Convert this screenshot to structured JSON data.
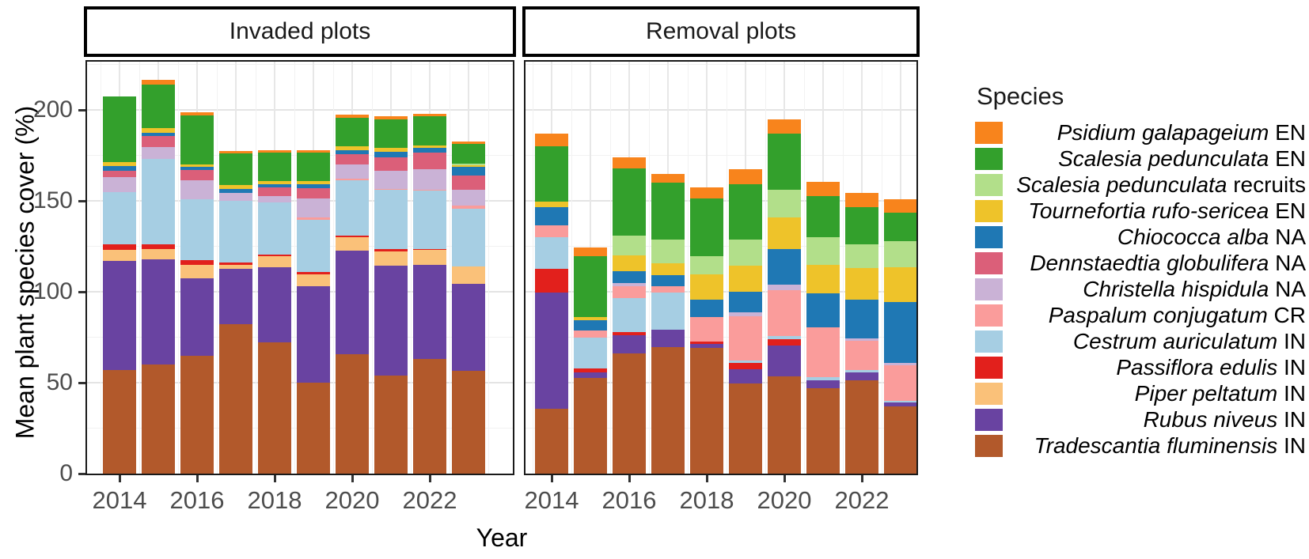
{
  "figure": {
    "y_axis": {
      "title": "Mean plant species cover (%)",
      "tick_labels": [
        "0",
        "50",
        "100",
        "150",
        "200"
      ]
    },
    "x_axis": {
      "title": "Year",
      "tick_labels": [
        "2014",
        "2016",
        "2018",
        "2020",
        "2022"
      ]
    }
  },
  "legend": {
    "title": "Species",
    "items": [
      {
        "name": "Psidium galapageium",
        "suffix": "EN",
        "color": "#F8841C"
      },
      {
        "name": "Scalesia pedunculata",
        "suffix": "EN",
        "color": "#33A02C"
      },
      {
        "name": "Scalesia pedunculata",
        "suffix": "recruits",
        "color": "#B2DF8A"
      },
      {
        "name": "Tournefortia rufo-sericea",
        "suffix": "EN",
        "color": "#EEC32A"
      },
      {
        "name": "Chiococca alba",
        "suffix": "NA",
        "color": "#1F78B4"
      },
      {
        "name": "Dennstaedtia globulifera",
        "suffix": "NA",
        "color": "#DB5F79"
      },
      {
        "name": "Christella hispidula",
        "suffix": "NA",
        "color": "#CAB2D6"
      },
      {
        "name": "Paspalum conjugatum",
        "suffix": "CR",
        "color": "#FA9C9B"
      },
      {
        "name": "Cestrum auriculatum",
        "suffix": "IN",
        "color": "#A6CEE3"
      },
      {
        "name": "Passiflora edulis",
        "suffix": "IN",
        "color": "#E2201C"
      },
      {
        "name": "Piper peltatum",
        "suffix": "IN",
        "color": "#FAC179"
      },
      {
        "name": "Rubus niveus",
        "suffix": "IN",
        "color": "#6943A1"
      },
      {
        "name": "Tradescantia fluminensis",
        "suffix": "IN",
        "color": "#B2592B"
      }
    ]
  },
  "chart_data": {
    "type": "bar",
    "stacked": true,
    "title": "",
    "xlabel": "Year",
    "ylabel": "Mean plant species cover (%)",
    "ylim": [
      0,
      231
    ],
    "y_major_gridlines": [
      50,
      100,
      150,
      200
    ],
    "y_minor_gridlines": [
      25,
      75,
      125,
      175,
      225
    ],
    "y_ticks": [
      0,
      50,
      100,
      150,
      200
    ],
    "x": [
      2014,
      2015,
      2016,
      2017,
      2018,
      2019,
      2020,
      2021,
      2022,
      2023
    ],
    "x_tick_indices": [
      0,
      2,
      4,
      6,
      8
    ],
    "x_tick_labels": [
      "2014",
      "2016",
      "2018",
      "2020",
      "2022"
    ],
    "legend_position": "right",
    "facets": [
      {
        "label": "Invaded plots",
        "series": [
          {
            "name": "Tradescantia fluminensis",
            "status": "IN",
            "color": "#B2592B",
            "values": [
              57,
              60,
              65,
              82,
              72,
              50,
              65.5,
              54,
              63,
              56.5
            ]
          },
          {
            "name": "Rubus niveus",
            "status": "IN",
            "color": "#6943A1",
            "values": [
              60,
              58,
              42.5,
              30.5,
              41.5,
              53,
              57,
              60.5,
              52,
              48
            ]
          },
          {
            "name": "Piper peltatum",
            "status": "IN",
            "color": "#FAC179",
            "values": [
              6,
              5.5,
              7.5,
              2.5,
              6,
              6.5,
              7.5,
              7.5,
              8,
              9.5
            ]
          },
          {
            "name": "Passiflora edulis",
            "status": "IN",
            "color": "#E2201C",
            "values": [
              3,
              2.5,
              2.5,
              1,
              1,
              1.5,
              1,
              1.5,
              0.5,
              0
            ]
          },
          {
            "name": "Cestrum auriculatum",
            "status": "IN",
            "color": "#A6CEE3",
            "values": [
              29,
              47,
              33.5,
              34,
              28.5,
              28.5,
              30.5,
              32.5,
              32,
              31.5
            ]
          },
          {
            "name": "Paspalum conjugatum",
            "status": "CR",
            "color": "#FA9C9B",
            "values": [
              0,
              0,
              0,
              0,
              0,
              1.5,
              0.5,
              0.5,
              0.5,
              2
            ]
          },
          {
            "name": "Christella hispidula",
            "status": "NA",
            "color": "#CAB2D6",
            "values": [
              8,
              6.5,
              10.5,
              4.5,
              3.5,
              10.5,
              8,
              10,
              11.5,
              8.5
            ]
          },
          {
            "name": "Dennstaedtia globulifera",
            "status": "NA",
            "color": "#DB5F79",
            "values": [
              3.5,
              6,
              5.5,
              0,
              5,
              5.5,
              5.5,
              7.5,
              9,
              8
            ]
          },
          {
            "name": "Chiococca alba",
            "status": "NA",
            "color": "#1F78B4",
            "values": [
              2.5,
              2,
              1.5,
              2,
              1.5,
              2,
              2.5,
              3,
              2.5,
              4.5
            ]
          },
          {
            "name": "Tournefortia rufo-sericea",
            "status": "EN",
            "color": "#EEC32A",
            "values": [
              2.5,
              2.5,
              1.5,
              2,
              2,
              2,
              2,
              2,
              1.5,
              1
            ]
          },
          {
            "name": "Scalesia pedunculata recruits",
            "status": "",
            "color": "#B2DF8A",
            "values": [
              0,
              0,
              0,
              0,
              0,
              0,
              0,
              0,
              0,
              1
            ]
          },
          {
            "name": "Scalesia pedunculata",
            "status": "EN",
            "color": "#33A02C",
            "values": [
              36,
              24,
              27,
              17.5,
              15.5,
              15.5,
              15.5,
              16,
              16,
              11
            ]
          },
          {
            "name": "Psidium galapageium",
            "status": "EN",
            "color": "#F8841C",
            "values": [
              0,
              2.5,
              1.5,
              1.5,
              1.5,
              1.5,
              2,
              1.5,
              1.5,
              1
            ]
          }
        ]
      },
      {
        "label": "Removal plots",
        "series": [
          {
            "name": "Tradescantia fluminensis",
            "status": "IN",
            "color": "#B2592B",
            "values": [
              35.5,
              52.5,
              66,
              69.5,
              69,
              49.5,
              53.5,
              47,
              51.5,
              37
            ]
          },
          {
            "name": "Rubus niveus",
            "status": "IN",
            "color": "#6943A1",
            "values": [
              64,
              3,
              10,
              9.5,
              2.5,
              8,
              17,
              4.5,
              4,
              2
            ]
          },
          {
            "name": "Piper peltatum",
            "status": "IN",
            "color": "#FAC179",
            "values": [
              0,
              0,
              0,
              0,
              0,
              0,
              0,
              0,
              0,
              0
            ]
          },
          {
            "name": "Passiflora edulis",
            "status": "IN",
            "color": "#E2201C",
            "values": [
              13,
              2.5,
              2,
              0,
              1,
              3.5,
              3.5,
              0,
              0,
              0
            ]
          },
          {
            "name": "Cestrum auriculatum",
            "status": "IN",
            "color": "#A6CEE3",
            "values": [
              17.5,
              17,
              18.5,
              20.5,
              0,
              1,
              1.5,
              1.5,
              1.5,
              1
            ]
          },
          {
            "name": "Paspalum conjugatum",
            "status": "CR",
            "color": "#FA9C9B",
            "values": [
              6.5,
              3.5,
              6.5,
              3.5,
              13.5,
              24.5,
              25.5,
              27.5,
              16,
              19.5
            ]
          },
          {
            "name": "Christella hispidula",
            "status": "NA",
            "color": "#CAB2D6",
            "values": [
              0,
              0,
              2,
              0,
              0,
              2,
              3,
              0,
              1.5,
              1.5
            ]
          },
          {
            "name": "Dennstaedtia globulifera",
            "status": "NA",
            "color": "#DB5F79",
            "values": [
              0,
              0,
              0,
              0,
              0,
              0,
              0,
              0,
              0,
              0
            ]
          },
          {
            "name": "Chiococca alba",
            "status": "NA",
            "color": "#1F78B4",
            "values": [
              10,
              6,
              6.5,
              6,
              9.5,
              11.5,
              19.5,
              18.5,
              21,
              33.5
            ]
          },
          {
            "name": "Tournefortia rufo-sericea",
            "status": "EN",
            "color": "#EEC32A",
            "values": [
              3,
              1.5,
              8.5,
              6.5,
              14,
              14.5,
              17.5,
              16,
              17.5,
              19
            ]
          },
          {
            "name": "Scalesia pedunculata recruits",
            "status": "",
            "color": "#B2DF8A",
            "values": [
              0,
              0,
              11,
              13,
              10,
              14,
              15,
              15,
              13,
              14.5
            ]
          },
          {
            "name": "Scalesia pedunculata",
            "status": "EN",
            "color": "#33A02C",
            "values": [
              30.5,
              33.5,
              37,
              31.5,
              32,
              30.5,
              31,
              22.5,
              20.5,
              15.5
            ]
          },
          {
            "name": "Psidium galapageium",
            "status": "EN",
            "color": "#F8841C",
            "values": [
              7,
              5,
              6,
              5,
              6,
              8.5,
              8,
              8,
              8,
              7.5
            ]
          }
        ]
      }
    ]
  }
}
